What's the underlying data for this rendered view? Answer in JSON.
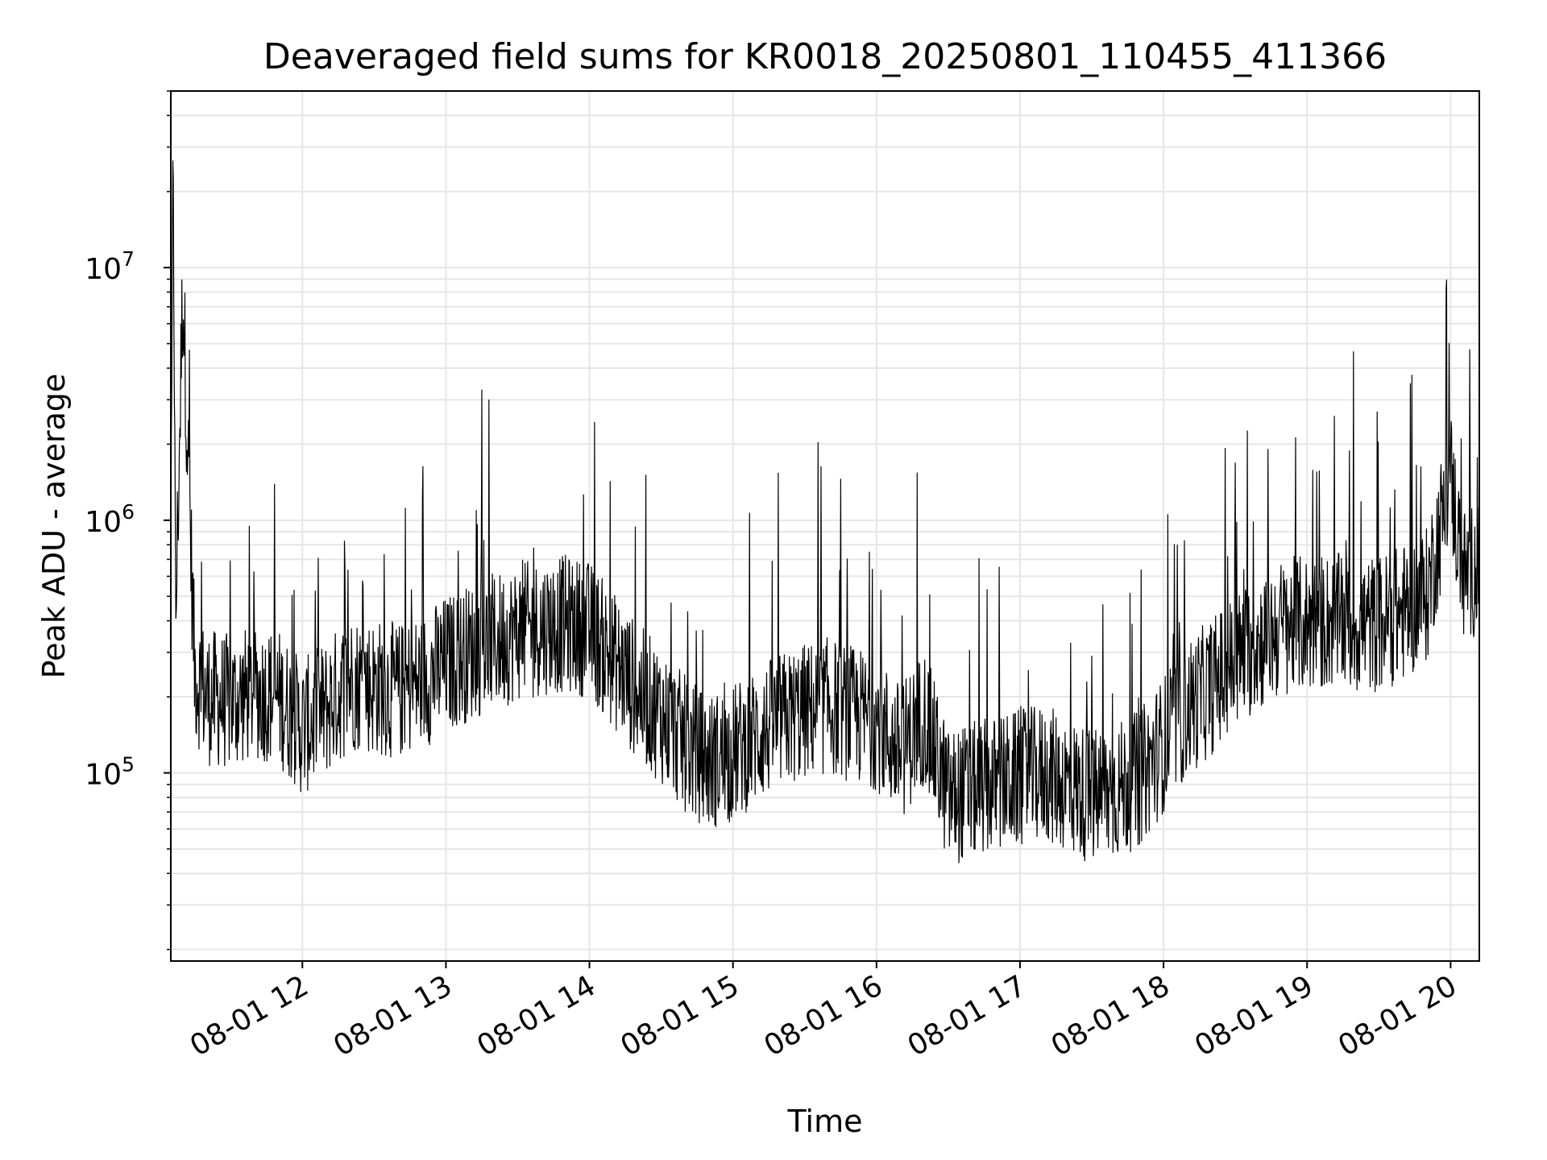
{
  "chart_data": {
    "type": "line",
    "title": "Deaveraged field sums for KR0018_20250801_110455_411366",
    "xlabel": "Time",
    "ylabel": "Peak ADU - average",
    "yscale": "log",
    "ylim": [
      18000,
      50000000
    ],
    "xlim": [
      "2025-08-01 11:05",
      "2025-08-01 20:12"
    ],
    "grid": true,
    "line_color": "#000000",
    "grid_color": "#e6e6e6",
    "x_ticks": [
      {
        "time": "2025-08-01 12:00",
        "label": "08-01 12"
      },
      {
        "time": "2025-08-01 13:00",
        "label": "08-01 13"
      },
      {
        "time": "2025-08-01 14:00",
        "label": "08-01 14"
      },
      {
        "time": "2025-08-01 15:00",
        "label": "08-01 15"
      },
      {
        "time": "2025-08-01 16:00",
        "label": "08-01 16"
      },
      {
        "time": "2025-08-01 17:00",
        "label": "08-01 17"
      },
      {
        "time": "2025-08-01 18:00",
        "label": "08-01 18"
      },
      {
        "time": "2025-08-01 19:00",
        "label": "08-01 19"
      },
      {
        "time": "2025-08-01 20:00",
        "label": "08-01 20"
      }
    ],
    "y_ticks": [
      {
        "value": 100000,
        "base": "10",
        "exp": "5"
      },
      {
        "value": 1000000,
        "base": "10",
        "exp": "6"
      },
      {
        "value": 10000000,
        "base": "10",
        "exp": "7"
      }
    ],
    "series": [
      {
        "x": [
          "2025-08-01 11:05",
          "2025-08-01 11:06",
          "2025-08-01 11:07",
          "2025-08-01 11:10",
          "2025-08-01 11:15",
          "2025-08-01 11:20",
          "2025-08-01 11:30",
          "2025-08-01 11:40",
          "2025-08-01 11:50",
          "2025-08-01 12:00",
          "2025-08-01 12:10",
          "2025-08-01 12:20",
          "2025-08-01 12:30",
          "2025-08-01 12:40",
          "2025-08-01 12:50",
          "2025-08-01 13:00",
          "2025-08-01 13:10",
          "2025-08-01 13:20",
          "2025-08-01 13:30",
          "2025-08-01 13:40",
          "2025-08-01 13:50",
          "2025-08-01 14:00",
          "2025-08-01 14:10",
          "2025-08-01 14:20",
          "2025-08-01 14:30",
          "2025-08-01 14:40",
          "2025-08-01 14:50",
          "2025-08-01 15:00",
          "2025-08-01 15:10",
          "2025-08-01 15:20",
          "2025-08-01 15:30",
          "2025-08-01 15:40",
          "2025-08-01 15:50",
          "2025-08-01 16:00",
          "2025-08-01 16:10",
          "2025-08-01 16:20",
          "2025-08-01 16:30",
          "2025-08-01 16:40",
          "2025-08-01 16:50",
          "2025-08-01 17:00",
          "2025-08-01 17:10",
          "2025-08-01 17:20",
          "2025-08-01 17:30",
          "2025-08-01 17:40",
          "2025-08-01 17:50",
          "2025-08-01 18:00",
          "2025-08-01 18:10",
          "2025-08-01 18:20",
          "2025-08-01 18:30",
          "2025-08-01 18:40",
          "2025-08-01 18:50",
          "2025-08-01 19:00",
          "2025-08-01 19:10",
          "2025-08-01 19:20",
          "2025-08-01 19:30",
          "2025-08-01 19:40",
          "2025-08-01 19:50",
          "2025-08-01 20:00",
          "2025-08-01 20:05",
          "2025-08-01 20:10",
          "2025-08-01 20:12"
        ],
        "y": [
          450000,
          35000000,
          380000,
          8500000,
          250000,
          200000,
          190000,
          210000,
          200000,
          150000,
          180000,
          230000,
          220000,
          210000,
          230000,
          270000,
          300000,
          330000,
          360000,
          380000,
          390000,
          370000,
          280000,
          210000,
          170000,
          130000,
          110000,
          120000,
          140000,
          160000,
          175000,
          185000,
          170000,
          160000,
          120000,
          170000,
          80000,
          85000,
          90000,
          95000,
          100000,
          90000,
          80000,
          85000,
          95000,
          130000,
          180000,
          220000,
          280000,
          330000,
          380000,
          390000,
          400000,
          380000,
          390000,
          430000,
          500000,
          1500000,
          600000,
          650000,
          600000
        ]
      }
    ]
  }
}
